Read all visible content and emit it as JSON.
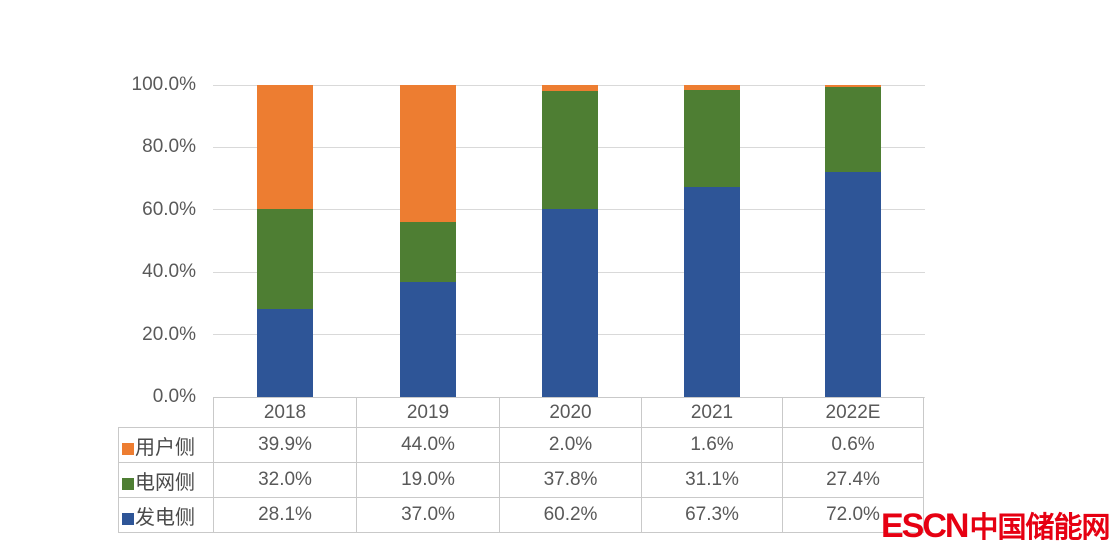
{
  "chart_data": {
    "type": "bar",
    "stacked": true,
    "percent_stacked": true,
    "title": "",
    "xlabel": "",
    "ylabel": "",
    "categories": [
      "2018",
      "2019",
      "2020",
      "2021",
      "2022E"
    ],
    "series": [
      {
        "name": "发电侧",
        "color": "#2E5597",
        "values": [
          28.1,
          37.0,
          60.2,
          67.3,
          72.0
        ]
      },
      {
        "name": "电网侧",
        "color": "#4E7E33",
        "values": [
          32.0,
          19.0,
          37.8,
          31.1,
          27.4
        ]
      },
      {
        "name": "用户侧",
        "color": "#ED7D31",
        "values": [
          39.9,
          44.0,
          2.0,
          1.6,
          0.6
        ]
      }
    ],
    "ylim": [
      0,
      100
    ],
    "y_tick_labels": [
      "100.0%",
      "80.0%",
      "60.0%",
      "40.0%",
      "20.0%",
      "0.0%"
    ],
    "grid": true,
    "legend_position": "table-rows-left"
  },
  "data_table": {
    "header": [
      "2018",
      "2019",
      "2020",
      "2021",
      "2022E"
    ],
    "rows": [
      {
        "label": "用户侧",
        "swatch_color": "#ED7D31",
        "values": [
          "39.9%",
          "44.0%",
          "2.0%",
          "1.6%",
          "0.6%"
        ]
      },
      {
        "label": "电网侧",
        "swatch_color": "#4E7E33",
        "values": [
          "32.0%",
          "19.0%",
          "37.8%",
          "31.1%",
          "27.4%"
        ]
      },
      {
        "label": "发电侧",
        "swatch_color": "#2E5597",
        "values": [
          "28.1%",
          "37.0%",
          "60.2%",
          "67.3%",
          "72.0%"
        ]
      }
    ]
  },
  "watermark": {
    "latin": "ESCN",
    "chinese": "中国储能网",
    "color": "#E60012"
  }
}
